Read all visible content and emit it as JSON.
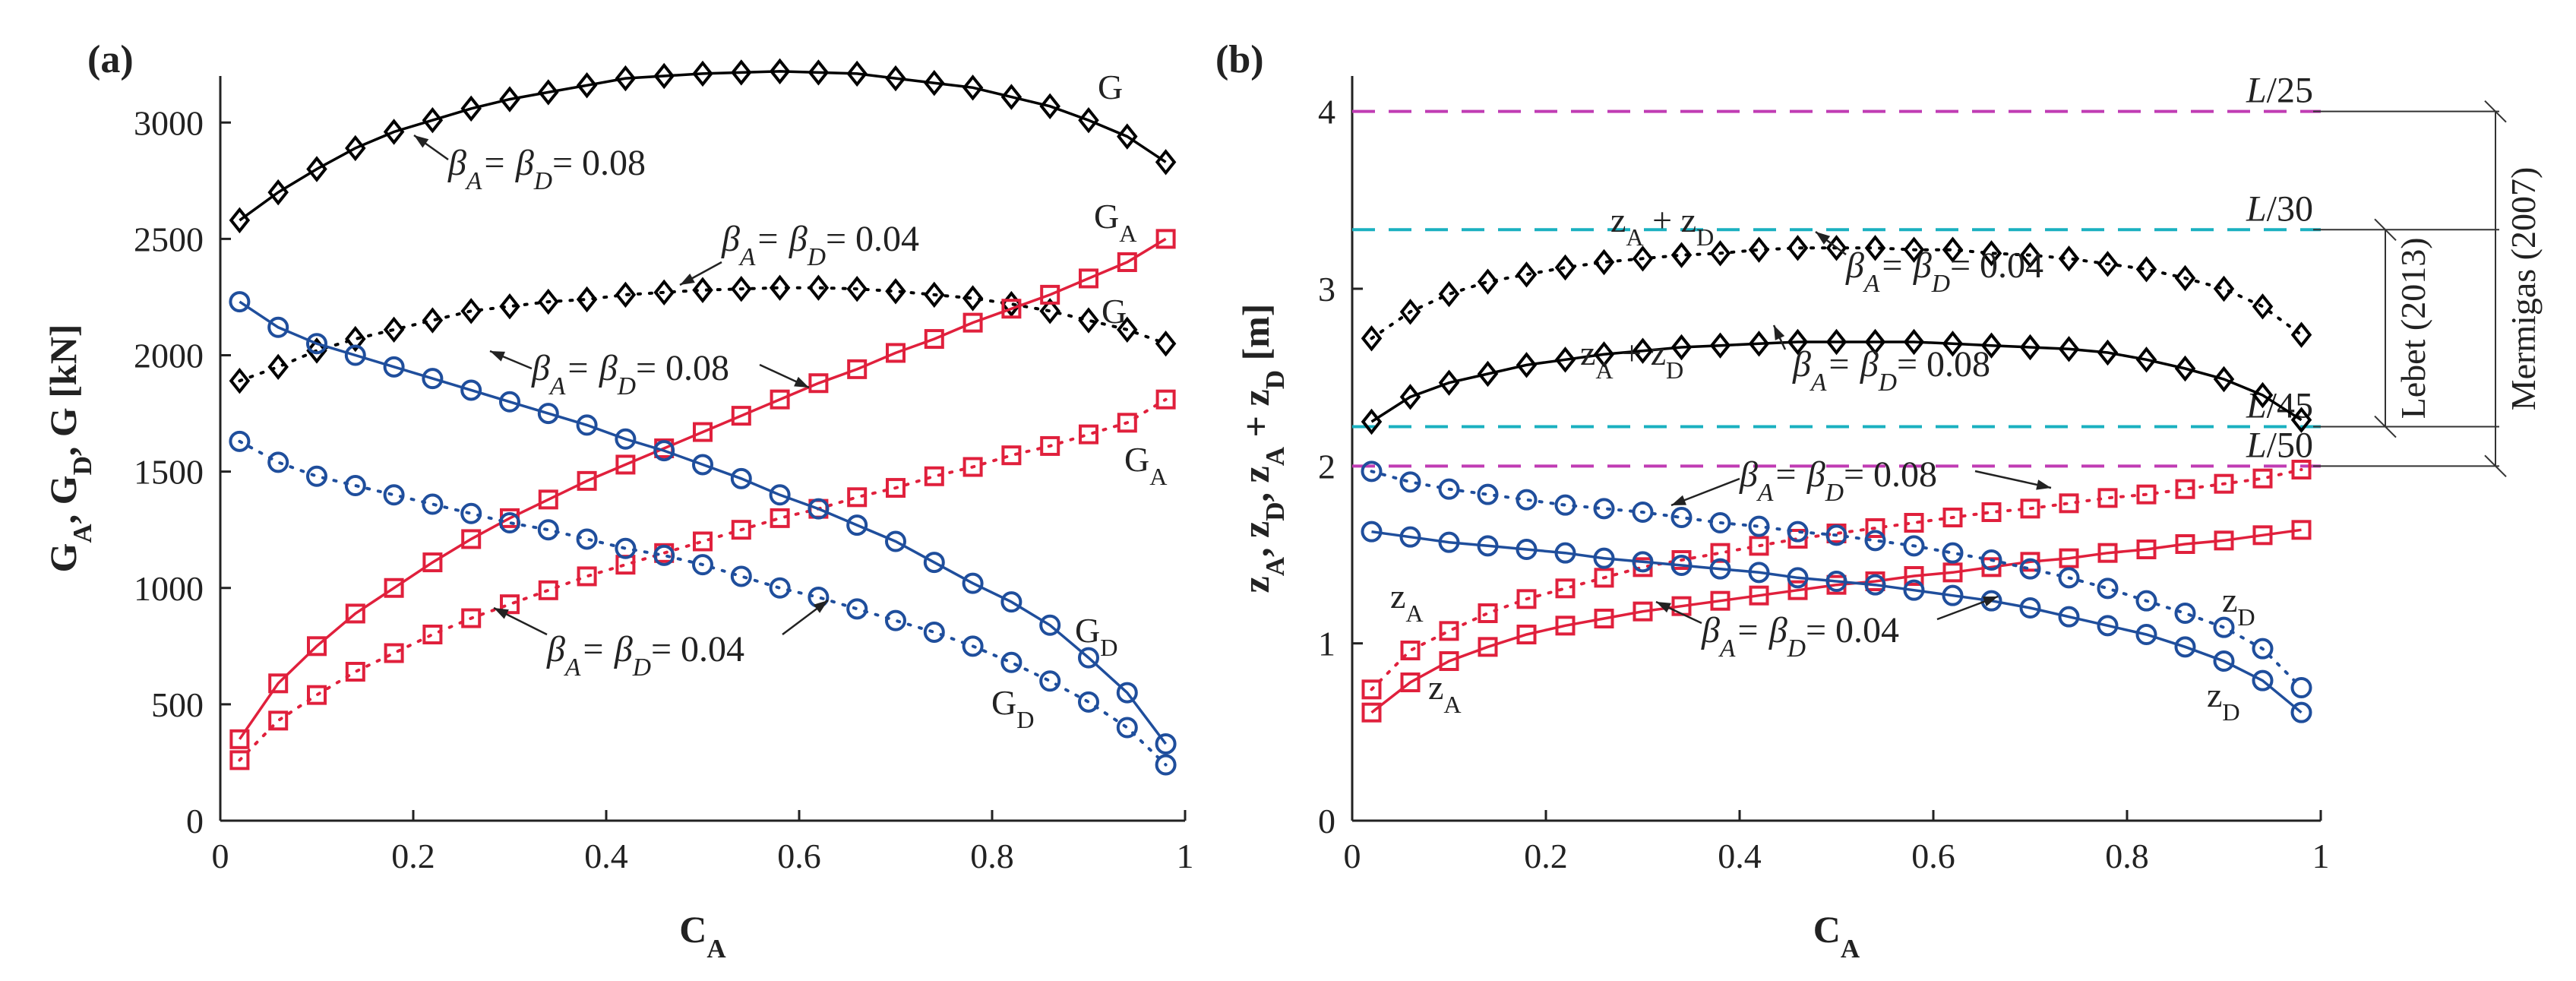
{
  "chart_data": [
    {
      "panel": "(a)",
      "type": "line",
      "xlabel": "C_A",
      "ylabel": "G_A, G_D, G [kN]",
      "xlim": [
        0,
        1
      ],
      "ylim": [
        0,
        3200
      ],
      "xticks": [
        "0",
        "0.2",
        "0.4",
        "0.6",
        "0.8",
        "1"
      ],
      "yticks": [
        "0",
        "500",
        "1000",
        "1500",
        "2000",
        "2500",
        "3000"
      ],
      "x": [
        0.02,
        0.06,
        0.1,
        0.14,
        0.18,
        0.22,
        0.26,
        0.3,
        0.34,
        0.38,
        0.42,
        0.46,
        0.5,
        0.54,
        0.58,
        0.62,
        0.66,
        0.7,
        0.74,
        0.78,
        0.82,
        0.86,
        0.9,
        0.94,
        0.98
      ],
      "series": [
        {
          "name": "G",
          "group": "0.08",
          "color": "#000000",
          "marker": "diamond",
          "line": "solid",
          "values": [
            2580,
            2700,
            2800,
            2890,
            2960,
            3010,
            3060,
            3100,
            3130,
            3160,
            3190,
            3200,
            3210,
            3215,
            3220,
            3215,
            3210,
            3190,
            3170,
            3150,
            3110,
            3070,
            3010,
            2940,
            2830
          ]
        },
        {
          "name": "G",
          "group": "0.04",
          "color": "#000000",
          "marker": "diamond",
          "line": "dotted",
          "values": [
            1890,
            1950,
            2020,
            2070,
            2110,
            2150,
            2190,
            2210,
            2230,
            2240,
            2260,
            2270,
            2280,
            2285,
            2290,
            2290,
            2285,
            2275,
            2260,
            2245,
            2220,
            2190,
            2150,
            2110,
            2050
          ]
        },
        {
          "name": "G_A",
          "group": "0.08",
          "color": "#e0203c",
          "marker": "square",
          "line": "solid",
          "values": [
            350,
            590,
            750,
            890,
            1000,
            1110,
            1210,
            1300,
            1380,
            1460,
            1530,
            1600,
            1670,
            1740,
            1810,
            1880,
            1940,
            2010,
            2070,
            2140,
            2200,
            2260,
            2330,
            2400,
            2500
          ]
        },
        {
          "name": "G_A",
          "group": "0.04",
          "color": "#e0203c",
          "marker": "square",
          "line": "dotted",
          "values": [
            260,
            430,
            540,
            640,
            720,
            800,
            870,
            930,
            990,
            1050,
            1100,
            1150,
            1200,
            1250,
            1300,
            1340,
            1390,
            1430,
            1480,
            1520,
            1570,
            1610,
            1660,
            1710,
            1810
          ]
        },
        {
          "name": "G_D",
          "group": "0.08",
          "color": "#1f4e9c",
          "marker": "circle",
          "line": "solid",
          "values": [
            2230,
            2120,
            2050,
            2000,
            1950,
            1900,
            1850,
            1800,
            1750,
            1700,
            1640,
            1590,
            1530,
            1470,
            1400,
            1340,
            1270,
            1200,
            1110,
            1020,
            940,
            840,
            700,
            550,
            330
          ]
        },
        {
          "name": "G_D",
          "group": "0.04",
          "color": "#1f4e9c",
          "marker": "circle",
          "line": "dotted",
          "values": [
            1630,
            1540,
            1480,
            1440,
            1400,
            1360,
            1320,
            1280,
            1250,
            1210,
            1170,
            1140,
            1100,
            1050,
            1000,
            960,
            910,
            860,
            810,
            750,
            680,
            600,
            510,
            400,
            240
          ]
        }
      ],
      "labels": [
        "G",
        "G",
        "G_A",
        "G_A",
        "G_D",
        "G_D"
      ],
      "annotations": [
        "β_A = β_D = 0.08",
        "β_A = β_D = 0.04",
        "β_A = β_D = 0.08",
        "β_A = β_D = 0.04"
      ]
    },
    {
      "panel": "(b)",
      "type": "line",
      "xlabel": "C_A",
      "ylabel": "z_A, z_D, z_A + z_D [m]",
      "xlim": [
        0,
        1
      ],
      "ylim": [
        0,
        4.2
      ],
      "xticks": [
        "0",
        "0.2",
        "0.4",
        "0.6",
        "0.8",
        "1"
      ],
      "yticks": [
        "0",
        "1",
        "2",
        "3",
        "4"
      ],
      "x": [
        0.02,
        0.06,
        0.1,
        0.14,
        0.18,
        0.22,
        0.26,
        0.3,
        0.34,
        0.38,
        0.42,
        0.46,
        0.5,
        0.54,
        0.58,
        0.62,
        0.66,
        0.7,
        0.74,
        0.78,
        0.82,
        0.86,
        0.9,
        0.94,
        0.98
      ],
      "series": [
        {
          "name": "z_A+z_D",
          "group": "0.04",
          "color": "#000000",
          "marker": "diamond",
          "line": "dotted",
          "values": [
            2.72,
            2.87,
            2.97,
            3.04,
            3.08,
            3.12,
            3.15,
            3.17,
            3.19,
            3.2,
            3.22,
            3.23,
            3.23,
            3.23,
            3.22,
            3.22,
            3.2,
            3.19,
            3.17,
            3.14,
            3.11,
            3.06,
            3.0,
            2.9,
            2.74
          ]
        },
        {
          "name": "z_A+z_D",
          "group": "0.08",
          "color": "#000000",
          "marker": "diamond",
          "line": "solid",
          "values": [
            2.25,
            2.39,
            2.47,
            2.52,
            2.57,
            2.6,
            2.63,
            2.65,
            2.67,
            2.68,
            2.69,
            2.7,
            2.7,
            2.7,
            2.7,
            2.69,
            2.68,
            2.67,
            2.66,
            2.64,
            2.6,
            2.55,
            2.49,
            2.4,
            2.26
          ]
        },
        {
          "name": "z_A",
          "group": "0.04",
          "color": "#e0203c",
          "marker": "square",
          "line": "dotted",
          "values": [
            0.74,
            0.96,
            1.07,
            1.17,
            1.25,
            1.31,
            1.37,
            1.43,
            1.47,
            1.51,
            1.55,
            1.59,
            1.62,
            1.65,
            1.68,
            1.71,
            1.74,
            1.76,
            1.79,
            1.82,
            1.84,
            1.87,
            1.9,
            1.93,
            1.98
          ]
        },
        {
          "name": "z_A",
          "group": "0.08",
          "color": "#e0203c",
          "marker": "square",
          "line": "solid",
          "values": [
            0.61,
            0.78,
            0.9,
            0.98,
            1.05,
            1.1,
            1.14,
            1.18,
            1.21,
            1.24,
            1.27,
            1.3,
            1.33,
            1.35,
            1.38,
            1.4,
            1.43,
            1.46,
            1.48,
            1.51,
            1.53,
            1.56,
            1.58,
            1.61,
            1.64
          ]
        },
        {
          "name": "z_D",
          "group": "0.08",
          "color": "#1f4e9c",
          "marker": "circle",
          "line": "dotted",
          "values": [
            1.97,
            1.91,
            1.87,
            1.84,
            1.81,
            1.78,
            1.76,
            1.74,
            1.71,
            1.68,
            1.66,
            1.63,
            1.61,
            1.58,
            1.55,
            1.51,
            1.47,
            1.42,
            1.37,
            1.31,
            1.24,
            1.17,
            1.09,
            0.97,
            0.75
          ]
        },
        {
          "name": "z_D",
          "group": "0.04",
          "color": "#1f4e9c",
          "marker": "circle",
          "line": "solid",
          "values": [
            1.63,
            1.6,
            1.57,
            1.55,
            1.53,
            1.51,
            1.48,
            1.46,
            1.44,
            1.42,
            1.4,
            1.37,
            1.35,
            1.33,
            1.3,
            1.27,
            1.24,
            1.2,
            1.15,
            1.1,
            1.05,
            0.98,
            0.9,
            0.79,
            0.61
          ]
        }
      ],
      "reference_lines": [
        {
          "label": "L/25",
          "y": 4.0,
          "color": "#c03cb4"
        },
        {
          "label": "L/30",
          "y": 3.333,
          "color": "#1ab0c0"
        },
        {
          "label": "L/45",
          "y": 2.222,
          "color": "#1ab0c0"
        },
        {
          "label": "L/50",
          "y": 2.0,
          "color": "#c03cb4"
        }
      ],
      "labels": [
        "z_A + z_D",
        "z_A + z_D",
        "z_A",
        "z_A",
        "z_D",
        "z_D"
      ],
      "annotations": [
        "β_A = β_D = 0.04",
        "β_A = β_D = 0.08",
        "β_A = β_D = 0.08",
        "β_A = β_D = 0.04"
      ],
      "bracket_labels": [
        "Mermigas (2007)",
        "Lebet (2013)"
      ]
    }
  ]
}
